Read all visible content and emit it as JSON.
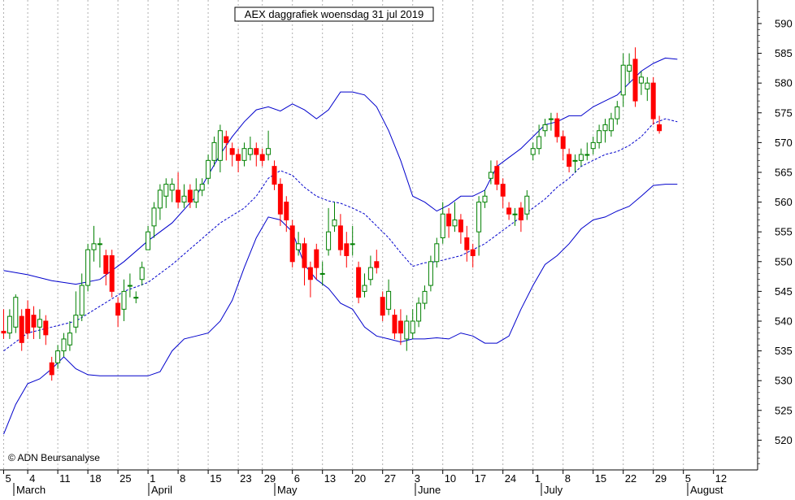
{
  "chart_data": {
    "type": "candlestick",
    "title": "AEX daggrafiek woensdag 31 jul 2019",
    "watermark": "© ADN Beursanalyse",
    "ylim": [
      515,
      593
    ],
    "y_ticks": [
      520,
      525,
      530,
      535,
      540,
      545,
      550,
      555,
      560,
      565,
      570,
      575,
      580,
      585,
      590
    ],
    "grid": "vertical dotted",
    "x_ticks": [
      "5",
      "4",
      "11",
      "18",
      "25",
      "1",
      "8",
      "15",
      "23",
      "29",
      "6",
      "13",
      "20",
      "27",
      "3",
      "10",
      "17",
      "24",
      "1",
      "8",
      "15",
      "22",
      "29",
      "5",
      "12"
    ],
    "x_tick_index": [
      0,
      4,
      9,
      14,
      19,
      24,
      29,
      34,
      39,
      43,
      48,
      53,
      58,
      63,
      68,
      73,
      78,
      83,
      88,
      93,
      98,
      103,
      108,
      113,
      118
    ],
    "months": [
      "March",
      "April",
      "May",
      "June",
      "July",
      "August"
    ],
    "month_index": [
      2.5,
      24,
      44.5,
      67.5,
      87.5,
      112.5
    ],
    "colors": {
      "up": "#008000",
      "down": "#ff0000",
      "band": "#0000cc",
      "ma": "#0000cc"
    },
    "candles": [
      [
        538.3,
        538.0,
        542.0,
        537.0
      ],
      [
        538.0,
        540.8,
        542.0,
        537.0
      ],
      [
        539.0,
        544.0,
        544.5,
        538.0
      ],
      [
        540.8,
        536.4,
        542.0,
        535.0
      ],
      [
        542.0,
        538.0,
        543.5,
        537.0
      ],
      [
        541.0,
        539.0,
        542.5,
        537.0
      ],
      [
        539.0,
        540.3,
        542.0,
        537.0
      ],
      [
        540.0,
        537.7,
        541.0,
        536.0
      ],
      [
        533.0,
        531.0,
        534.0,
        530.0
      ],
      [
        533.0,
        535.0,
        536.0,
        532.0
      ],
      [
        535.0,
        537.0,
        538.0,
        534.0
      ],
      [
        536.0,
        538.0,
        540.0,
        535.0
      ],
      [
        539.0,
        541.0,
        545.0,
        538.0
      ],
      [
        541.0,
        546.0,
        548.0,
        540.0
      ],
      [
        546.0,
        552.0,
        553.0,
        545.0
      ],
      [
        552.0,
        553.0,
        556.0,
        550.0
      ],
      [
        553.0,
        553.0,
        554.0,
        549.0
      ],
      [
        551.0,
        548.0,
        552.0,
        546.0
      ],
      [
        551.0,
        545.0,
        552.0,
        544.0
      ],
      [
        543.0,
        541.0,
        544.0,
        539.0
      ],
      [
        542.0,
        545.0,
        547.0,
        540.0
      ],
      [
        546.0,
        546.0,
        548.0,
        544.0
      ],
      [
        544.0,
        544.0,
        545.0,
        543.0
      ],
      [
        547.0,
        549.0,
        550.0,
        546.0
      ],
      [
        552.0,
        555.0,
        556.0,
        552.0
      ],
      [
        556.0,
        559.0,
        560.0,
        554.0
      ],
      [
        559.0,
        562.0,
        563.0,
        557.0
      ],
      [
        561.0,
        563.0,
        564.0,
        559.0
      ],
      [
        562.0,
        563.0,
        564.0,
        560.0
      ],
      [
        562.0,
        560.0,
        565.0,
        559.0
      ],
      [
        560.0,
        561.0,
        563.0,
        559.0
      ],
      [
        562.0,
        560.0,
        563.0,
        559.0
      ],
      [
        560.0,
        562.0,
        564.0,
        559.0
      ],
      [
        562.0,
        563.0,
        564.0,
        561.0
      ],
      [
        564.0,
        567.0,
        568.0,
        563.0
      ],
      [
        567.0,
        570.0,
        571.0,
        566.0
      ],
      [
        567.0,
        572.0,
        573.0,
        565.0
      ],
      [
        571.0,
        570.0,
        572.0,
        567.0
      ],
      [
        569.0,
        568.0,
        570.0,
        566.0
      ],
      [
        568.0,
        567.0,
        569.0,
        565.0
      ],
      [
        567.0,
        569.0,
        570.0,
        566.0
      ],
      [
        568.0,
        569.0,
        571.0,
        567.0
      ],
      [
        569.0,
        568.0,
        570.0,
        566.0
      ],
      [
        568.0,
        567.0,
        569.0,
        566.0
      ],
      [
        568.0,
        569.0,
        572.0,
        567.0
      ],
      [
        566.0,
        563.0,
        567.0,
        562.0
      ],
      [
        563.0,
        558.0,
        564.0,
        556.0
      ],
      [
        560.0,
        557.0,
        561.0,
        555.0
      ],
      [
        556.0,
        550.0,
        557.0,
        549.0
      ],
      [
        552.0,
        553.0,
        555.0,
        551.0
      ],
      [
        553.0,
        549.0,
        554.0,
        546.0
      ],
      [
        549.0,
        547.0,
        550.0,
        544.0
      ],
      [
        552.0,
        549.0,
        553.0,
        547.0
      ],
      [
        548.0,
        548.0,
        550.0,
        546.0
      ],
      [
        552.0,
        555.0,
        559.0,
        551.0
      ],
      [
        556.0,
        557.0,
        560.0,
        555.0
      ],
      [
        556.0,
        552.0,
        558.0,
        551.0
      ],
      [
        553.0,
        551.0,
        555.0,
        549.0
      ],
      [
        553.0,
        553.0,
        556.0,
        551.0
      ],
      [
        549.0,
        544.0,
        550.0,
        543.0
      ],
      [
        545.0,
        546.0,
        548.0,
        544.0
      ],
      [
        547.0,
        549.0,
        551.0,
        546.0
      ],
      [
        550.0,
        549.0,
        552.0,
        548.0
      ],
      [
        544.0,
        541.0,
        545.0,
        540.0
      ],
      [
        542.0,
        545.0,
        547.0,
        541.0
      ],
      [
        541.0,
        538.0,
        542.0,
        537.0
      ],
      [
        540.0,
        538.0,
        542.0,
        536.0
      ],
      [
        537.0,
        540.0,
        541.0,
        535.0
      ],
      [
        538.0,
        540.0,
        542.0,
        537.0
      ],
      [
        540.0,
        543.0,
        544.0,
        539.0
      ],
      [
        543.0,
        545.0,
        546.0,
        542.0
      ],
      [
        546.0,
        550.0,
        551.0,
        545.0
      ],
      [
        550.0,
        553.0,
        554.0,
        549.0
      ],
      [
        554.0,
        558.0,
        560.0,
        553.0
      ],
      [
        558.0,
        556.0,
        559.0,
        554.0
      ],
      [
        556.0,
        557.0,
        560.0,
        555.0
      ],
      [
        557.0,
        555.0,
        558.0,
        553.0
      ],
      [
        554.0,
        552.0,
        556.0,
        550.0
      ],
      [
        552.0,
        551.0,
        553.0,
        549.0
      ],
      [
        555.0,
        560.0,
        561.0,
        551.0
      ],
      [
        560.0,
        561.0,
        562.0,
        559.0
      ],
      [
        564.0,
        565.0,
        567.0,
        563.0
      ],
      [
        566.0,
        563.0,
        567.0,
        562.0
      ],
      [
        563.0,
        561.0,
        564.0,
        559.0
      ],
      [
        559.0,
        558.0,
        560.0,
        557.0
      ],
      [
        558.0,
        558.0,
        559.0,
        556.0
      ],
      [
        559.0,
        557.0,
        560.0,
        555.0
      ],
      [
        558.0,
        561.0,
        562.0,
        557.0
      ],
      [
        568.0,
        569.0,
        570.0,
        567.0
      ],
      [
        569.0,
        571.0,
        573.0,
        568.0
      ],
      [
        572.0,
        573.0,
        574.0,
        571.0
      ],
      [
        574.0,
        574.0,
        575.0,
        572.0
      ],
      [
        574.0,
        571.0,
        575.0,
        570.0
      ],
      [
        571.0,
        569.0,
        572.0,
        567.0
      ],
      [
        568.0,
        566.0,
        569.0,
        565.0
      ],
      [
        567.0,
        567.0,
        568.0,
        565.0
      ],
      [
        567.0,
        568.0,
        569.0,
        566.0
      ],
      [
        568.0,
        568.0,
        570.0,
        567.0
      ],
      [
        569.0,
        570.0,
        571.0,
        568.0
      ],
      [
        570.0,
        572.0,
        573.0,
        569.0
      ],
      [
        572.0,
        573.0,
        574.0,
        570.0
      ],
      [
        572.0,
        574.0,
        575.0,
        571.0
      ],
      [
        574.0,
        576.0,
        577.0,
        573.0
      ],
      [
        578.0,
        583.0,
        585.0,
        576.0
      ],
      [
        582.0,
        583.0,
        585.0,
        580.0
      ],
      [
        584.0,
        577.0,
        586.0,
        576.0
      ],
      [
        580.0,
        581.0,
        582.0,
        578.0
      ],
      [
        579.0,
        580.0,
        581.0,
        577.0
      ],
      [
        580.0,
        574.0,
        581.0,
        573.0
      ],
      [
        573.0,
        572.0,
        574.5,
        571.5
      ]
    ],
    "upper_band": [
      [
        0,
        548.5
      ],
      [
        4,
        547.8
      ],
      [
        8,
        546.8
      ],
      [
        12,
        546.2
      ],
      [
        16,
        547
      ],
      [
        20,
        550
      ],
      [
        24,
        553.5
      ],
      [
        28,
        556.5
      ],
      [
        32,
        561
      ],
      [
        36,
        568
      ],
      [
        38,
        571
      ],
      [
        40,
        573.5
      ],
      [
        42,
        575.5
      ],
      [
        44,
        576
      ],
      [
        46,
        575.3
      ],
      [
        48,
        576.5
      ],
      [
        50,
        575.5
      ],
      [
        52,
        574
      ],
      [
        54,
        575.5
      ],
      [
        56,
        578.5
      ],
      [
        58,
        578.5
      ],
      [
        60,
        578
      ],
      [
        62,
        576
      ],
      [
        64,
        572
      ],
      [
        66,
        567
      ],
      [
        68,
        561
      ],
      [
        70,
        560
      ],
      [
        72,
        558.5
      ],
      [
        74,
        559.5
      ],
      [
        76,
        561
      ],
      [
        78,
        561
      ],
      [
        80,
        562
      ],
      [
        82,
        566
      ],
      [
        84,
        567.5
      ],
      [
        86,
        569
      ],
      [
        88,
        571
      ],
      [
        90,
        573
      ],
      [
        92,
        573.5
      ],
      [
        94,
        574.5
      ],
      [
        96,
        574.5
      ],
      [
        98,
        576
      ],
      [
        100,
        577
      ],
      [
        102,
        578
      ],
      [
        104,
        580
      ],
      [
        106,
        582
      ],
      [
        108,
        583.3
      ],
      [
        110,
        584.2
      ],
      [
        112,
        584
      ]
    ],
    "middle_band": [
      [
        0,
        535
      ],
      [
        4,
        538
      ],
      [
        8,
        539
      ],
      [
        12,
        540
      ],
      [
        16,
        542.5
      ],
      [
        20,
        545
      ],
      [
        24,
        546.5
      ],
      [
        28,
        549.5
      ],
      [
        32,
        553
      ],
      [
        36,
        556.5
      ],
      [
        40,
        559
      ],
      [
        42,
        561
      ],
      [
        44,
        564
      ],
      [
        46,
        565.3
      ],
      [
        48,
        564.5
      ],
      [
        50,
        562.5
      ],
      [
        52,
        561
      ],
      [
        54,
        560.2
      ],
      [
        56,
        559.8
      ],
      [
        58,
        559
      ],
      [
        60,
        558
      ],
      [
        62,
        556
      ],
      [
        64,
        554
      ],
      [
        66,
        551.5
      ],
      [
        68,
        549.2
      ],
      [
        70,
        549.8
      ],
      [
        72,
        550
      ],
      [
        74,
        550.5
      ],
      [
        76,
        551
      ],
      [
        78,
        552
      ],
      [
        80,
        553
      ],
      [
        82,
        554.5
      ],
      [
        84,
        556
      ],
      [
        86,
        557.5
      ],
      [
        88,
        559
      ],
      [
        90,
        560.5
      ],
      [
        92,
        562.5
      ],
      [
        94,
        564
      ],
      [
        96,
        566
      ],
      [
        98,
        567
      ],
      [
        100,
        568
      ],
      [
        102,
        568.5
      ],
      [
        104,
        569.5
      ],
      [
        106,
        571
      ],
      [
        108,
        573.2
      ],
      [
        110,
        574
      ],
      [
        112,
        573.5
      ]
    ],
    "lower_band": [
      [
        0,
        521
      ],
      [
        2,
        526
      ],
      [
        4,
        529.5
      ],
      [
        6,
        530.3
      ],
      [
        8,
        532
      ],
      [
        10,
        534
      ],
      [
        12,
        532
      ],
      [
        14,
        531
      ],
      [
        16,
        530.8
      ],
      [
        20,
        530.8
      ],
      [
        24,
        530.8
      ],
      [
        26,
        531.5
      ],
      [
        28,
        535
      ],
      [
        30,
        537
      ],
      [
        32,
        537.5
      ],
      [
        34,
        538
      ],
      [
        36,
        540
      ],
      [
        38,
        543.5
      ],
      [
        40,
        549
      ],
      [
        42,
        554
      ],
      [
        44,
        557.5
      ],
      [
        46,
        557
      ],
      [
        48,
        555
      ],
      [
        50,
        549.5
      ],
      [
        52,
        547
      ],
      [
        54,
        545.5
      ],
      [
        56,
        543
      ],
      [
        58,
        542
      ],
      [
        60,
        539
      ],
      [
        62,
        537.5
      ],
      [
        64,
        537
      ],
      [
        66,
        536.5
      ],
      [
        68,
        537
      ],
      [
        70,
        537
      ],
      [
        72,
        537.2
      ],
      [
        74,
        537
      ],
      [
        76,
        538
      ],
      [
        78,
        537.5
      ],
      [
        80,
        536.3
      ],
      [
        82,
        536.3
      ],
      [
        84,
        537.5
      ],
      [
        86,
        542
      ],
      [
        88,
        546
      ],
      [
        90,
        549.5
      ],
      [
        92,
        551
      ],
      [
        94,
        553
      ],
      [
        96,
        555.5
      ],
      [
        98,
        557
      ],
      [
        100,
        557.5
      ],
      [
        102,
        558.5
      ],
      [
        104,
        559.3
      ],
      [
        106,
        561
      ],
      [
        108,
        562.8
      ],
      [
        110,
        563
      ],
      [
        112,
        563
      ]
    ]
  }
}
